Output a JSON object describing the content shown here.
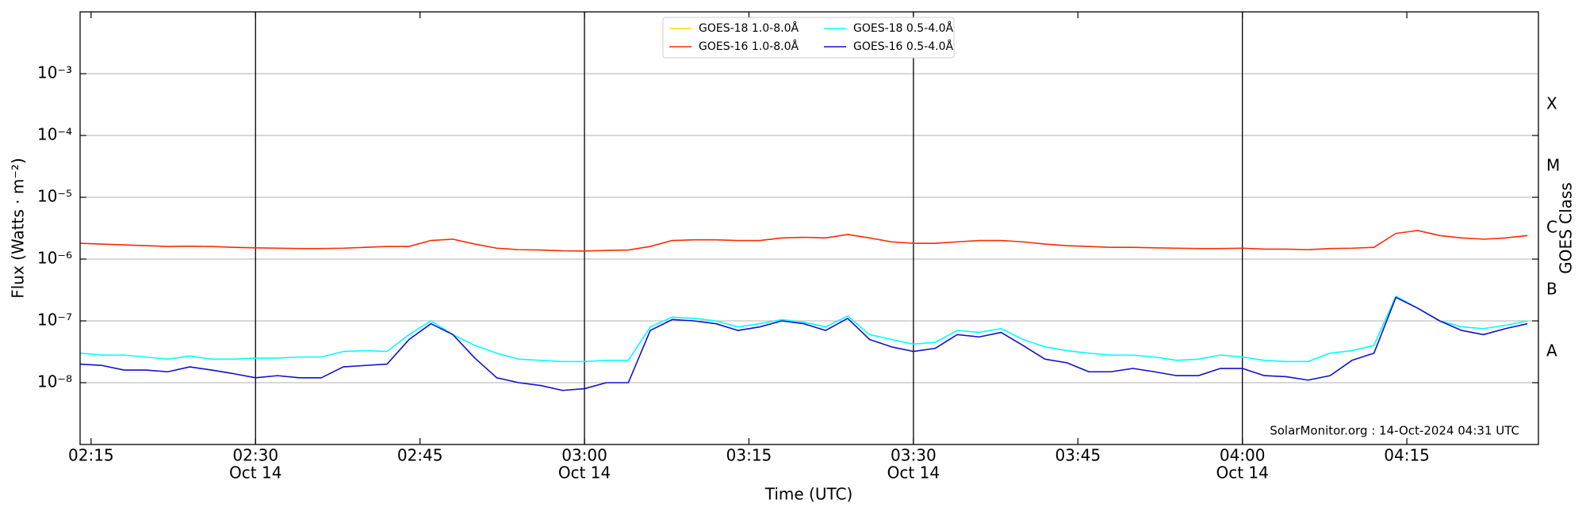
{
  "chart_data": {
    "type": "line",
    "xlabel": "Time (UTC)",
    "ylabel": "Flux (Watts · m⁻²)",
    "y2label": "GOES Class",
    "annotation": "SolarMonitor.org : 14-Oct-2024 04:31 UTC",
    "log_y": true,
    "grid": true,
    "legend": "upper center",
    "xlim": [
      "02:14",
      "04:27"
    ],
    "xticks": [
      "02:15",
      "02:30",
      "02:45",
      "03:00",
      "03:15",
      "03:30",
      "03:45",
      "04:00",
      "04:15"
    ],
    "xtick_dates": [
      null,
      "Oct 14",
      null,
      "Oct 14",
      null,
      "Oct 14",
      null,
      "Oct 14",
      null
    ],
    "vlines": [
      "02:30",
      "03:00",
      "03:30",
      "04:00"
    ],
    "ylim": [
      1e-09,
      0.01
    ],
    "yticks": [
      {
        "value": 1e-08,
        "label": "10⁻⁸"
      },
      {
        "value": 1e-07,
        "label": "10⁻⁷"
      },
      {
        "value": 1e-06,
        "label": "10⁻⁶"
      },
      {
        "value": 1e-05,
        "label": "10⁻⁵"
      },
      {
        "value": 0.0001,
        "label": "10⁻⁴"
      },
      {
        "value": 0.001,
        "label": "10⁻³"
      }
    ],
    "y2ticks": [
      {
        "value": 1e-08,
        "label": "A"
      },
      {
        "value": 1e-07,
        "label": "B"
      },
      {
        "value": 1e-06,
        "label": "C"
      },
      {
        "value": 1e-05,
        "label": "M"
      },
      {
        "value": 0.0001,
        "label": "X"
      }
    ],
    "x": [
      "02:14",
      "02:16",
      "02:18",
      "02:20",
      "02:22",
      "02:24",
      "02:26",
      "02:28",
      "02:30",
      "02:32",
      "02:34",
      "02:36",
      "02:38",
      "02:40",
      "02:42",
      "02:44",
      "02:46",
      "02:48",
      "02:50",
      "02:52",
      "02:54",
      "02:56",
      "02:58",
      "03:00",
      "03:02",
      "03:04",
      "03:06",
      "03:08",
      "03:10",
      "03:12",
      "03:14",
      "03:16",
      "03:18",
      "03:20",
      "03:22",
      "03:24",
      "03:26",
      "03:28",
      "03:30",
      "03:32",
      "03:34",
      "03:36",
      "03:38",
      "03:40",
      "03:42",
      "03:44",
      "03:46",
      "03:48",
      "03:50",
      "03:52",
      "03:54",
      "03:56",
      "03:58",
      "04:00",
      "04:02",
      "04:04",
      "04:06",
      "04:08",
      "04:10",
      "04:12",
      "04:14",
      "04:16",
      "04:18",
      "04:20",
      "04:22",
      "04:24",
      "04:26"
    ],
    "series": [
      {
        "name": "GOES-18 1.0-8.0Å",
        "color": "#ffd700",
        "values": [
          null,
          null,
          null,
          null,
          null,
          null,
          null,
          null,
          null,
          null,
          null,
          null,
          null,
          null,
          null,
          null,
          null,
          null,
          null,
          null,
          null,
          null,
          null,
          null,
          null,
          null,
          null,
          null,
          null,
          null,
          null,
          null,
          null,
          null,
          null,
          null,
          null,
          null,
          null,
          null,
          null,
          null,
          null,
          null,
          null,
          null,
          null,
          null,
          null,
          null,
          null,
          null,
          null,
          null,
          null,
          null,
          null,
          null,
          null,
          null,
          null,
          null,
          null,
          null,
          null,
          null,
          null
        ]
      },
      {
        "name": "GOES-16 1.0-8.0Å",
        "color": "#ff2a00",
        "values": [
          1.8e-06,
          1.75e-06,
          1.7e-06,
          1.65e-06,
          1.6e-06,
          1.62e-06,
          1.6e-06,
          1.55e-06,
          1.52e-06,
          1.5e-06,
          1.48e-06,
          1.48e-06,
          1.5e-06,
          1.55e-06,
          1.6e-06,
          1.6e-06,
          2e-06,
          2.1e-06,
          1.75e-06,
          1.5e-06,
          1.42e-06,
          1.4e-06,
          1.36e-06,
          1.35e-06,
          1.38e-06,
          1.4e-06,
          1.6e-06,
          2e-06,
          2.05e-06,
          2.05e-06,
          2e-06,
          2e-06,
          2.2e-06,
          2.25e-06,
          2.2e-06,
          2.5e-06,
          2.2e-06,
          1.9e-06,
          1.8e-06,
          1.8e-06,
          1.9e-06,
          2e-06,
          2e-06,
          1.9e-06,
          1.75e-06,
          1.65e-06,
          1.6e-06,
          1.55e-06,
          1.55e-06,
          1.52e-06,
          1.5e-06,
          1.48e-06,
          1.48e-06,
          1.5e-06,
          1.45e-06,
          1.45e-06,
          1.42e-06,
          1.48e-06,
          1.5e-06,
          1.55e-06,
          2.6e-06,
          2.9e-06,
          2.4e-06,
          2.2e-06,
          2.1e-06,
          2.2e-06,
          2.4e-06
        ]
      },
      {
        "name": "GOES-18 0.5-4.0Å",
        "color": "#00ffff",
        "values": [
          3e-08,
          2.8e-08,
          2.8e-08,
          2.6e-08,
          2.4e-08,
          2.7e-08,
          2.4e-08,
          2.4e-08,
          2.5e-08,
          2.5e-08,
          2.6e-08,
          2.6e-08,
          3.2e-08,
          3.3e-08,
          3.2e-08,
          6e-08,
          1e-07,
          6e-08,
          4e-08,
          3e-08,
          2.4e-08,
          2.3e-08,
          2.2e-08,
          2.2e-08,
          2.3e-08,
          2.3e-08,
          8e-08,
          1.15e-07,
          1.1e-07,
          1e-07,
          8e-08,
          9e-08,
          1.05e-07,
          9.5e-08,
          8e-08,
          1.2e-07,
          6e-08,
          5e-08,
          4.2e-08,
          4.5e-08,
          7e-08,
          6.5e-08,
          7.5e-08,
          5e-08,
          3.8e-08,
          3.3e-08,
          3e-08,
          2.8e-08,
          2.8e-08,
          2.6e-08,
          2.3e-08,
          2.4e-08,
          2.8e-08,
          2.6e-08,
          2.3e-08,
          2.2e-08,
          2.2e-08,
          3e-08,
          3.3e-08,
          4e-08,
          2.5e-07,
          1.6e-07,
          1e-07,
          8e-08,
          7.5e-08,
          8.5e-08,
          1e-07
        ]
      },
      {
        "name": "GOES-16 0.5-4.0Å",
        "color": "#1010d0",
        "values": [
          2e-08,
          1.9e-08,
          1.6e-08,
          1.6e-08,
          1.5e-08,
          1.8e-08,
          1.6e-08,
          1.4e-08,
          1.2e-08,
          1.3e-08,
          1.2e-08,
          1.2e-08,
          1.8e-08,
          1.9e-08,
          2e-08,
          5e-08,
          9e-08,
          6e-08,
          2.5e-08,
          1.2e-08,
          1e-08,
          9e-09,
          7.5e-09,
          8e-09,
          1e-08,
          1e-08,
          7e-08,
          1.05e-07,
          1e-07,
          9e-08,
          7e-08,
          8e-08,
          1e-07,
          9e-08,
          7e-08,
          1.1e-07,
          5e-08,
          3.8e-08,
          3.2e-08,
          3.6e-08,
          6e-08,
          5.5e-08,
          6.5e-08,
          4e-08,
          2.4e-08,
          2.1e-08,
          1.5e-08,
          1.5e-08,
          1.7e-08,
          1.5e-08,
          1.3e-08,
          1.3e-08,
          1.7e-08,
          1.7e-08,
          1.3e-08,
          1.25e-08,
          1.1e-08,
          1.3e-08,
          2.3e-08,
          3e-08,
          2.4e-07,
          1.6e-07,
          1e-07,
          7e-08,
          6e-08,
          7.5e-08,
          9e-08
        ]
      }
    ]
  }
}
